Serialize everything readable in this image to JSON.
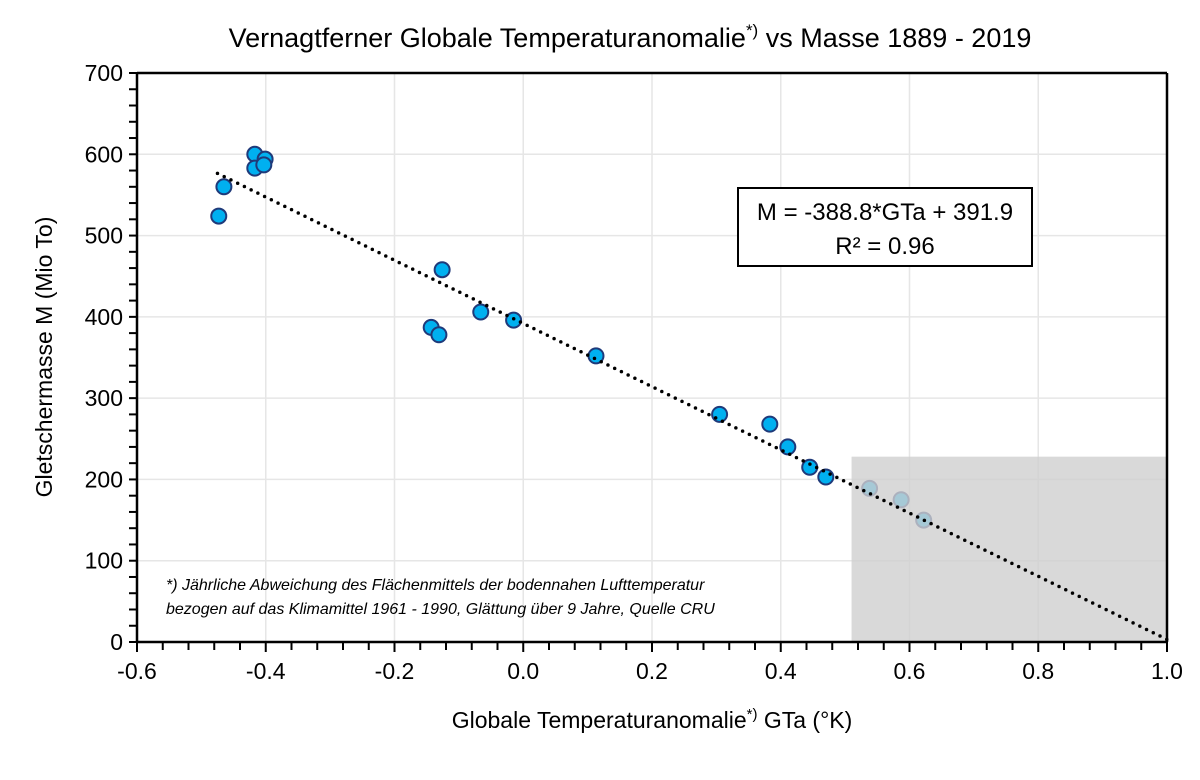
{
  "chart_data": {
    "type": "scatter",
    "title": "Vernagtferner  Globale Temperaturanomalie",
    "title_sup": "*)",
    "title_suffix": " vs Masse 1889 - 2019",
    "xlabel": "Globale Temperaturanomalie",
    "xlabel_sup": "*)",
    "xlabel_suffix": " GTa (°K)",
    "ylabel": "Gletschermasse M (Mio To)",
    "xlim": [
      -0.6,
      1.0
    ],
    "ylim": [
      0,
      700
    ],
    "xticks": [
      "-0.6",
      "-0.4",
      "-0.2",
      "0.0",
      "0.2",
      "0.4",
      "0.6",
      "0.8",
      "1.0"
    ],
    "yticks": [
      "0",
      "100",
      "200",
      "300",
      "400",
      "500",
      "600",
      "700"
    ],
    "grid": true,
    "points": [
      {
        "x": -0.473,
        "y": 524
      },
      {
        "x": -0.465,
        "y": 560
      },
      {
        "x": -0.417,
        "y": 600
      },
      {
        "x": -0.417,
        "y": 583
      },
      {
        "x": -0.401,
        "y": 594
      },
      {
        "x": -0.403,
        "y": 587
      },
      {
        "x": -0.126,
        "y": 458
      },
      {
        "x": -0.143,
        "y": 387
      },
      {
        "x": -0.131,
        "y": 378
      },
      {
        "x": -0.066,
        "y": 406
      },
      {
        "x": -0.015,
        "y": 396
      },
      {
        "x": 0.113,
        "y": 352
      },
      {
        "x": 0.305,
        "y": 280
      },
      {
        "x": 0.383,
        "y": 268
      },
      {
        "x": 0.411,
        "y": 240
      },
      {
        "x": 0.445,
        "y": 215
      },
      {
        "x": 0.47,
        "y": 203
      },
      {
        "x": 0.538,
        "y": 189
      },
      {
        "x": 0.587,
        "y": 175
      },
      {
        "x": 0.622,
        "y": 150
      }
    ],
    "trendline": {
      "slope": -388.8,
      "intercept": 391.9,
      "x_from": -0.475,
      "x_to": 1.0
    },
    "shaded_region": {
      "x": [
        0.51,
        1.0
      ],
      "y": [
        0,
        228
      ]
    },
    "equation_line1": "M = -388.8*GTa + 391.9",
    "equation_line2": "R² = 0.96",
    "footnote_line1": "*) Jährliche Abweichung des Flächenmittels der bodennahen Lufttemperatur",
    "footnote_line2": "bezogen auf das Klimamittel 1961 - 1990, Glättung über 9 Jahre, Quelle CRU",
    "colors": {
      "marker": "#00b0f0",
      "marker_edge": "#1f3a7a",
      "shade": "#d0d0d0",
      "grid": "#e6e6e6"
    }
  }
}
